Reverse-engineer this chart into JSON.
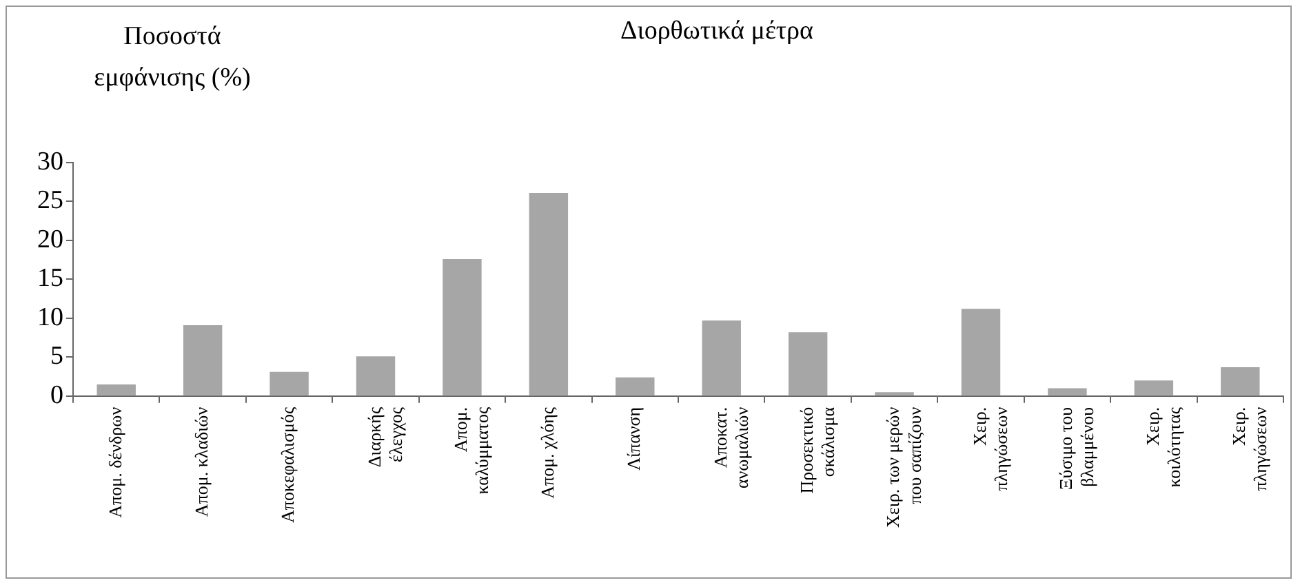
{
  "chart_data": {
    "type": "bar",
    "title": "Διορθωτικά μέτρα",
    "ylabel": "Ποσοστά εμφάνισης (%)",
    "categories": [
      "Απομ. δένδρων",
      "Απομ. κλαδιών",
      "Αποκεφαλισμός",
      "Διαρκής\nέλεγχος",
      "Απομ.\nκαλύμματος",
      "Απομ. χλόης",
      "Λίπανση",
      "Αποκατ.\nανωμαλιών",
      "Προσεκτικό\nσκάλισμα",
      "Χειρ. των μερών\nπου σαπίζουν",
      "Χειρ.\nπληγώσεων",
      "Ξύσιμο του\nβλαμμένου",
      "Χειρ.\nκοιλότητας",
      "Χειρ.\nπληγώσεων"
    ],
    "values": [
      1.5,
      9.1,
      3.1,
      5.1,
      17.6,
      26.1,
      2.4,
      9.7,
      8.2,
      0.5,
      11.2,
      1.0,
      2.0,
      3.7
    ],
    "color": "#a6a6a6",
    "ylim": [
      0,
      30
    ],
    "yticks": [
      0,
      5,
      10,
      15,
      20,
      25,
      30
    ],
    "grid": false,
    "legend": false
  }
}
